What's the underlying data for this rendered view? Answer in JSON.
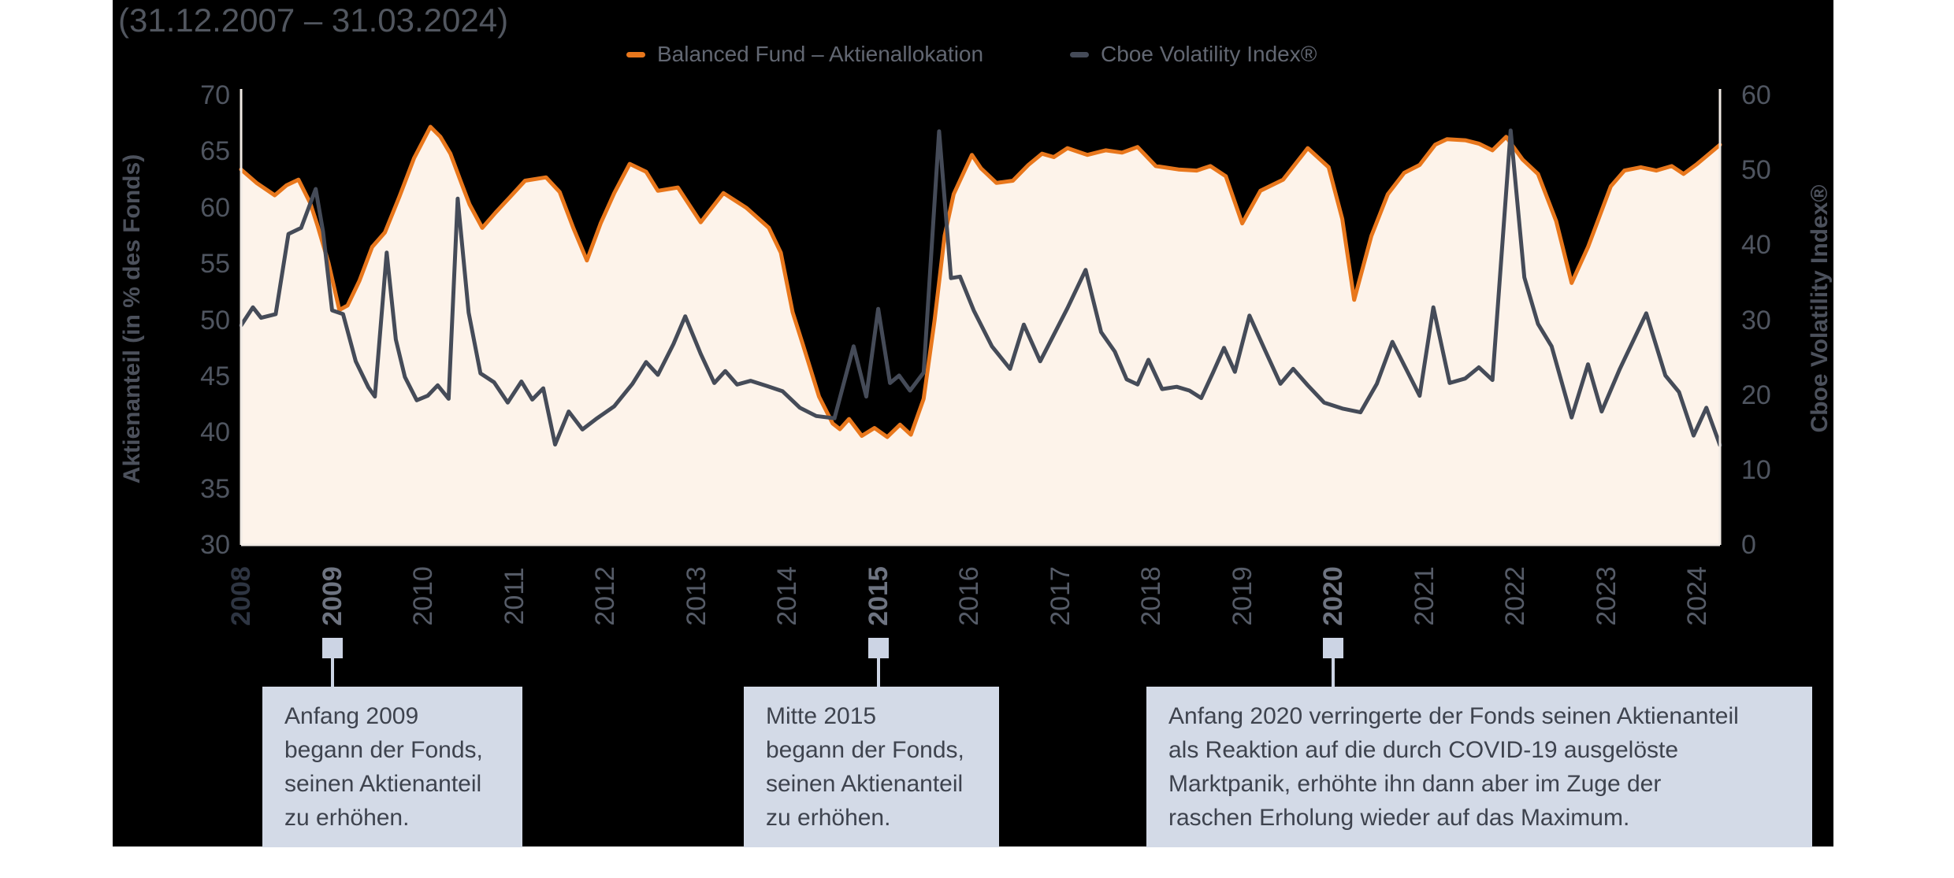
{
  "header": {
    "title": "(31.12.2007 – 31.03.2024)"
  },
  "legend": {
    "items": [
      {
        "label": "Balanced Fund – Aktienallokation",
        "color": "#e8771c"
      },
      {
        "label": "Cboe Volatility Index®",
        "color": "#454b58"
      }
    ]
  },
  "axes": {
    "left": {
      "title": "Aktienanteil (in % des Fonds)",
      "ticks": [
        70,
        65,
        60,
        55,
        50,
        45,
        40,
        35,
        30
      ]
    },
    "right": {
      "title": "Cboe Volatility Index®",
      "ticks": [
        60,
        50,
        40,
        30,
        20,
        10,
        0
      ]
    },
    "x": {
      "years": [
        "2008",
        "2009",
        "2010",
        "2011",
        "2012",
        "2013",
        "2014",
        "2015",
        "2016",
        "2017",
        "2018",
        "2019",
        "2020",
        "2021",
        "2022",
        "2023",
        "2024"
      ],
      "emphasis": {
        "2008": "dark",
        "2009": "strong",
        "2015": "strong",
        "2020": "strong"
      }
    }
  },
  "chart_data": {
    "type": "area",
    "title": "(31.12.2007 – 31.03.2024)",
    "grid": false,
    "legend_position": "top",
    "x_axis": {
      "label": "",
      "range": [
        2008,
        2024.25
      ],
      "tick_years": [
        2008,
        2009,
        2010,
        2011,
        2012,
        2013,
        2014,
        2015,
        2016,
        2017,
        2018,
        2019,
        2020,
        2021,
        2022,
        2023,
        2024
      ]
    },
    "y_axis_left": {
      "label": "Aktienanteil (in % des Fonds)",
      "range": [
        30,
        70
      ],
      "ticks": [
        70,
        65,
        60,
        55,
        50,
        45,
        40,
        35,
        30
      ]
    },
    "y_axis_right": {
      "label": "Cboe Volatility Index®",
      "range": [
        0,
        60
      ],
      "ticks": [
        60,
        50,
        40,
        30,
        20,
        10,
        0
      ]
    },
    "series": [
      {
        "name": "Balanced Fund – Aktienallokation",
        "axis": "left",
        "style": "area",
        "color": "#e8771c",
        "fill": "#fdf3ea",
        "x": [
          2008.0,
          2008.17,
          2008.37,
          2008.5,
          2008.63,
          2008.76,
          2008.84,
          2008.96,
          2009.08,
          2009.17,
          2009.3,
          2009.44,
          2009.58,
          2009.74,
          2009.9,
          2010.08,
          2010.19,
          2010.3,
          2010.42,
          2010.51,
          2010.65,
          2010.8,
          2010.95,
          2011.12,
          2011.35,
          2011.5,
          2011.65,
          2011.8,
          2011.95,
          2012.1,
          2012.27,
          2012.45,
          2012.58,
          2012.8,
          2013.05,
          2013.3,
          2013.55,
          2013.8,
          2013.93,
          2014.06,
          2014.17,
          2014.35,
          2014.5,
          2014.58,
          2014.68,
          2014.82,
          2014.96,
          2015.1,
          2015.24,
          2015.36,
          2015.5,
          2015.62,
          2015.73,
          2015.83,
          2015.95,
          2016.03,
          2016.13,
          2016.3,
          2016.48,
          2016.65,
          2016.8,
          2016.93,
          2017.08,
          2017.3,
          2017.5,
          2017.68,
          2017.85,
          2018.05,
          2018.3,
          2018.5,
          2018.65,
          2018.82,
          2019.0,
          2019.2,
          2019.45,
          2019.72,
          2019.95,
          2020.1,
          2020.23,
          2020.42,
          2020.6,
          2020.78,
          2020.95,
          2021.12,
          2021.25,
          2021.45,
          2021.6,
          2021.75,
          2021.9,
          2022.08,
          2022.25,
          2022.45,
          2022.62,
          2022.8,
          2023.05,
          2023.2,
          2023.38,
          2023.55,
          2023.72,
          2023.85,
          2024.0,
          2024.25
        ],
        "y": [
          63.4,
          62.2,
          61.1,
          62.0,
          62.5,
          60.4,
          58.4,
          55.1,
          50.9,
          51.3,
          53.5,
          56.5,
          57.8,
          61.0,
          64.4,
          67.2,
          66.3,
          64.8,
          62.2,
          60.3,
          58.2,
          59.6,
          60.9,
          62.4,
          62.7,
          61.4,
          58.2,
          55.3,
          58.6,
          61.3,
          63.9,
          63.2,
          61.5,
          61.8,
          58.7,
          61.3,
          60.0,
          58.2,
          56.0,
          50.7,
          47.9,
          43.2,
          40.8,
          40.3,
          41.2,
          39.7,
          40.4,
          39.6,
          40.7,
          39.8,
          43.0,
          50.0,
          57.5,
          61.2,
          63.3,
          64.7,
          63.5,
          62.2,
          62.4,
          63.8,
          64.8,
          64.5,
          65.3,
          64.7,
          65.1,
          64.9,
          65.4,
          63.7,
          63.4,
          63.3,
          63.7,
          62.8,
          58.6,
          61.5,
          62.5,
          65.3,
          63.6,
          59.0,
          51.8,
          57.5,
          61.2,
          63.1,
          63.8,
          65.6,
          66.1,
          66.0,
          65.7,
          65.1,
          66.3,
          64.3,
          63.0,
          58.8,
          53.3,
          56.5,
          61.9,
          63.3,
          63.6,
          63.3,
          63.7,
          63.0,
          63.9,
          65.6
        ]
      },
      {
        "name": "Cboe Volatility Index®",
        "axis": "right",
        "style": "line",
        "color": "#454b58",
        "x": [
          2008.0,
          2008.13,
          2008.22,
          2008.38,
          2008.52,
          2008.66,
          2008.82,
          2008.9,
          2009.0,
          2009.12,
          2009.26,
          2009.4,
          2009.47,
          2009.6,
          2009.7,
          2009.8,
          2009.93,
          2010.05,
          2010.16,
          2010.28,
          2010.38,
          2010.5,
          2010.63,
          2010.78,
          2010.93,
          2011.08,
          2011.2,
          2011.32,
          2011.45,
          2011.6,
          2011.75,
          2011.9,
          2012.1,
          2012.3,
          2012.45,
          2012.58,
          2012.75,
          2012.88,
          2013.05,
          2013.2,
          2013.32,
          2013.45,
          2013.6,
          2013.78,
          2013.95,
          2014.14,
          2014.32,
          2014.52,
          2014.73,
          2014.87,
          2015.0,
          2015.13,
          2015.23,
          2015.35,
          2015.5,
          2015.67,
          2015.8,
          2015.9,
          2016.05,
          2016.25,
          2016.45,
          2016.6,
          2016.78,
          2017.08,
          2017.28,
          2017.45,
          2017.6,
          2017.73,
          2017.85,
          2017.97,
          2018.12,
          2018.28,
          2018.42,
          2018.55,
          2018.68,
          2018.8,
          2018.92,
          2019.08,
          2019.25,
          2019.42,
          2019.56,
          2019.72,
          2019.9,
          2020.1,
          2020.3,
          2020.48,
          2020.65,
          2020.8,
          2020.95,
          2021.1,
          2021.28,
          2021.45,
          2021.6,
          2021.75,
          2021.95,
          2022.1,
          2022.25,
          2022.4,
          2022.62,
          2022.8,
          2022.95,
          2023.15,
          2023.44,
          2023.65,
          2023.8,
          2023.96,
          2024.1,
          2024.25
        ],
        "y": [
          29.3,
          31.7,
          30.3,
          30.8,
          41.5,
          42.3,
          47.5,
          41.8,
          31.3,
          30.8,
          24.5,
          21.0,
          19.8,
          39.0,
          27.4,
          22.4,
          19.3,
          19.9,
          21.3,
          19.5,
          46.2,
          31.0,
          22.9,
          21.7,
          19.0,
          21.8,
          19.4,
          20.9,
          13.4,
          17.8,
          15.4,
          16.8,
          18.5,
          21.5,
          24.4,
          22.7,
          26.8,
          30.5,
          25.5,
          21.6,
          23.2,
          21.4,
          21.9,
          21.2,
          20.5,
          18.3,
          17.2,
          16.9,
          26.5,
          19.8,
          31.5,
          21.6,
          22.6,
          20.6,
          23.0,
          55.2,
          35.6,
          35.8,
          31.3,
          26.5,
          23.5,
          29.4,
          24.5,
          31.6,
          36.7,
          28.4,
          25.8,
          22.1,
          21.4,
          24.7,
          20.8,
          21.1,
          20.6,
          19.6,
          23.0,
          26.3,
          23.1,
          30.6,
          26.0,
          21.5,
          23.5,
          21.3,
          19.0,
          18.2,
          17.7,
          21.5,
          27.1,
          23.5,
          19.9,
          31.7,
          21.6,
          22.2,
          23.7,
          22.0,
          55.3,
          35.7,
          29.5,
          26.5,
          17.0,
          24.1,
          17.8,
          23.5,
          30.9,
          22.6,
          20.4,
          14.6,
          18.3,
          13.3
        ]
      }
    ]
  },
  "annotations": [
    {
      "year": 2009,
      "lines": [
        "Anfang 2009",
        "begann der Fonds,",
        "seinen Aktienanteil",
        "zu erhöhen."
      ]
    },
    {
      "year": 2015,
      "lines": [
        "Mitte 2015",
        "begann der Fonds,",
        "seinen Aktienanteil",
        "zu erhöhen."
      ]
    },
    {
      "year": 2020,
      "lines": [
        "Anfang 2020 verringerte der Fonds seinen Aktienanteil",
        "als Reaktion auf die durch COVID-19 ausgelöste",
        "Marktpanik, erhöhte ihn dann aber im Zuge der",
        "raschen Erholung wieder auf das Maximum."
      ]
    }
  ],
  "colors": {
    "background": "#000000",
    "page": "#ffffff",
    "fund_line": "#e8771c",
    "fund_fill": "#fdf3ea",
    "vix_line": "#454b58",
    "spine": "#f0eae4",
    "callout_bg": "#d3dae7",
    "marker": "#ccd4e4"
  }
}
